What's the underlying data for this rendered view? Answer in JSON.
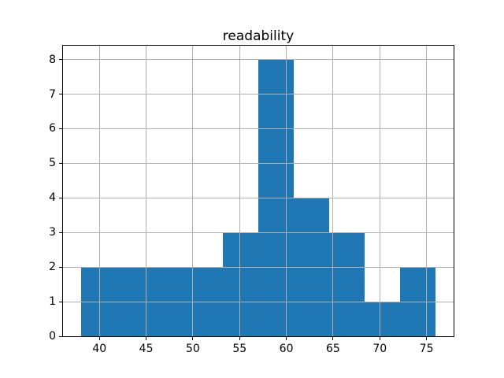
{
  "figure": {
    "background": "#ffffff"
  },
  "chart_data": {
    "type": "bar",
    "subtype": "histogram",
    "title": "readability",
    "xlabel": "",
    "ylabel": "",
    "bin_edges": [
      38.0,
      41.8,
      45.6,
      49.4,
      53.2,
      57.0,
      60.8,
      64.6,
      68.4,
      72.2,
      76.0
    ],
    "counts": [
      2,
      2,
      2,
      2,
      3,
      8,
      4,
      3,
      1,
      2
    ],
    "total_observations": 29,
    "xlim": [
      36.1,
      77.9
    ],
    "ylim": [
      0,
      8.4
    ],
    "xticks": [
      40,
      45,
      50,
      55,
      60,
      65,
      70,
      75
    ],
    "yticks": [
      0,
      1,
      2,
      3,
      4,
      5,
      6,
      7,
      8
    ],
    "bar_color": "#1f77b4",
    "grid": true,
    "grid_on_top_of_bars": true,
    "grid_color": "#b0b0b0",
    "spine_color": "#000000",
    "text_color": "#000000",
    "legend": null
  }
}
